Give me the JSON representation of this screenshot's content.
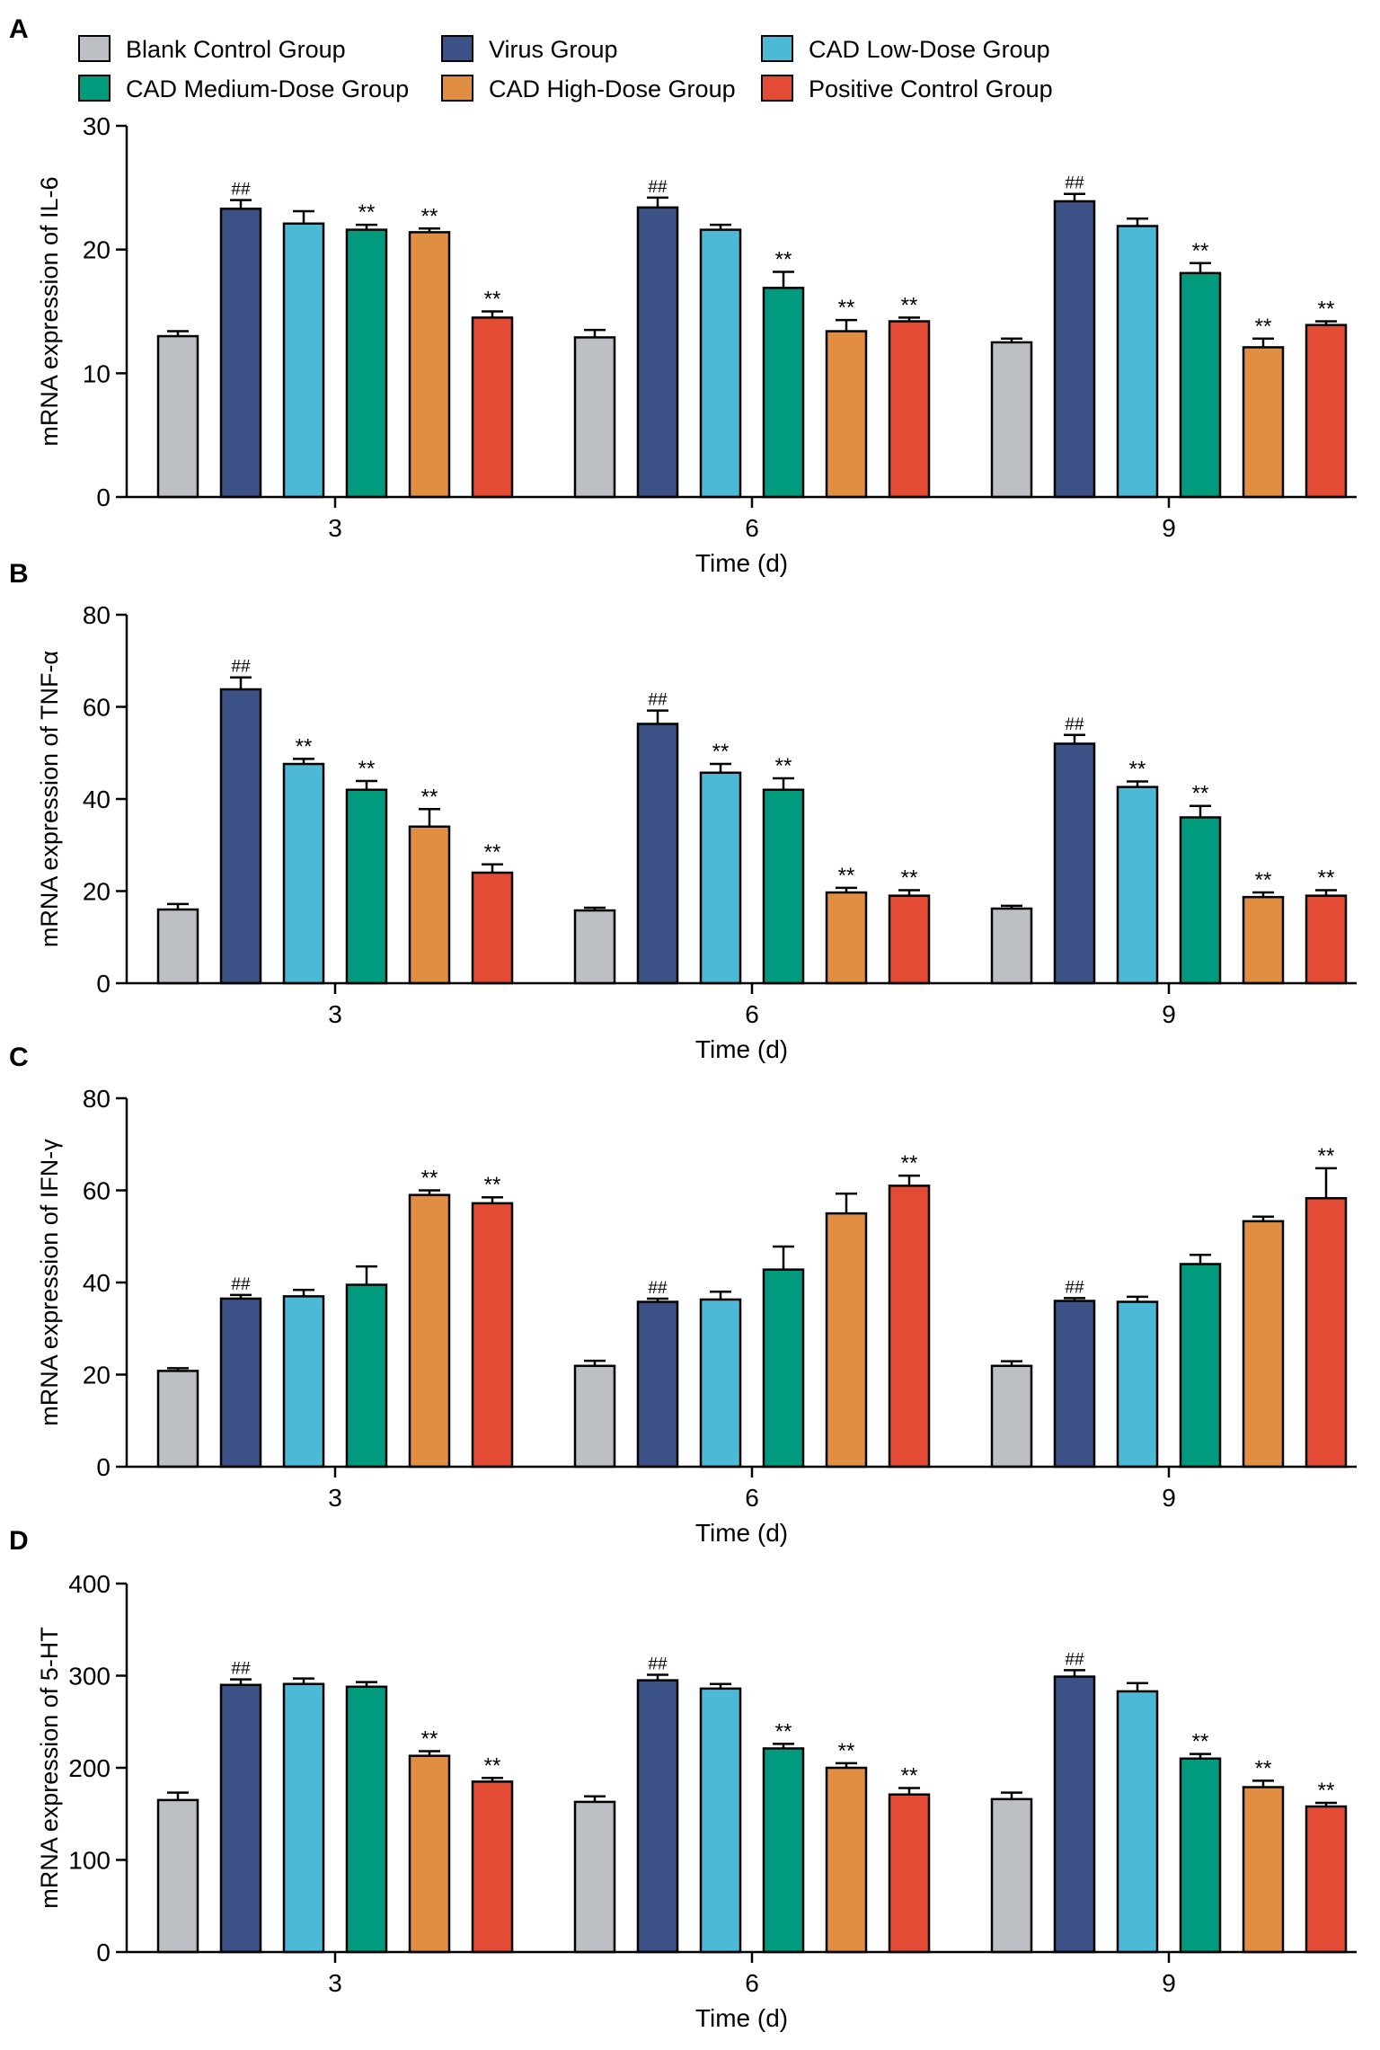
{
  "legend": {
    "items": [
      {
        "name": "Blank Control Group",
        "color": "#bcbfc3"
      },
      {
        "name": "Virus Group",
        "color": "#3c5185"
      },
      {
        "name": "CAD Low-Dose Group",
        "color": "#4cb9d6"
      },
      {
        "name": "CAD Medium-Dose Group",
        "color": "#009b7d"
      },
      {
        "name": "CAD High-Dose Group",
        "color": "#e08f42"
      },
      {
        "name": "Positive Control Group",
        "color": "#e44b34"
      }
    ]
  },
  "chart_data": [
    {
      "panel": "A",
      "type": "bar",
      "xlabel": "Time (d)",
      "ylabel": "mRNA expression of IL-6",
      "ylim": [
        0,
        30
      ],
      "yticks": [
        0,
        10,
        20,
        30
      ],
      "categories": [
        "3",
        "6",
        "9"
      ],
      "series": [
        {
          "name": "Blank Control Group",
          "values": [
            13.0,
            12.9,
            12.5
          ],
          "errors": [
            0.4,
            0.6,
            0.3
          ],
          "marks": [
            "",
            "",
            ""
          ]
        },
        {
          "name": "Virus Group",
          "values": [
            23.3,
            23.4,
            23.9
          ],
          "errors": [
            0.7,
            0.8,
            0.6
          ],
          "marks": [
            "##",
            "##",
            "##"
          ]
        },
        {
          "name": "CAD Low-Dose Group",
          "values": [
            22.1,
            21.6,
            21.9
          ],
          "errors": [
            1.0,
            0.4,
            0.6
          ],
          "marks": [
            "",
            "",
            ""
          ]
        },
        {
          "name": "CAD Medium-Dose Group",
          "values": [
            21.6,
            16.9,
            18.1
          ],
          "errors": [
            0.4,
            1.3,
            0.8
          ],
          "marks": [
            "**",
            "**",
            "**"
          ]
        },
        {
          "name": "CAD High-Dose Group",
          "values": [
            21.4,
            13.4,
            12.1
          ],
          "errors": [
            0.3,
            0.9,
            0.7
          ],
          "marks": [
            "**",
            "**",
            "**"
          ]
        },
        {
          "name": "Positive Control Group",
          "values": [
            14.5,
            14.2,
            13.9
          ],
          "errors": [
            0.5,
            0.3,
            0.3
          ],
          "marks": [
            "**",
            "**",
            "**"
          ]
        }
      ]
    },
    {
      "panel": "B",
      "type": "bar",
      "xlabel": "Time (d)",
      "ylabel": "mRNA expression of TNF-α",
      "ylim": [
        0,
        80
      ],
      "yticks": [
        0,
        20,
        40,
        60,
        80
      ],
      "categories": [
        "3",
        "6",
        "9"
      ],
      "series": [
        {
          "name": "Blank Control Group",
          "values": [
            16.0,
            15.8,
            16.2
          ],
          "errors": [
            1.2,
            0.6,
            0.6
          ],
          "marks": [
            "",
            "",
            ""
          ]
        },
        {
          "name": "Virus Group",
          "values": [
            63.8,
            56.3,
            52.0
          ],
          "errors": [
            2.6,
            2.9,
            1.9
          ],
          "marks": [
            "##",
            "##",
            "##"
          ]
        },
        {
          "name": "CAD Low-Dose Group",
          "values": [
            47.6,
            45.7,
            42.6
          ],
          "errors": [
            1.1,
            1.9,
            1.2
          ],
          "marks": [
            "**",
            "**",
            "**"
          ]
        },
        {
          "name": "CAD Medium-Dose Group",
          "values": [
            42.0,
            42.0,
            36.0
          ],
          "errors": [
            1.9,
            2.5,
            2.5
          ],
          "marks": [
            "**",
            "**",
            "**"
          ]
        },
        {
          "name": "CAD High-Dose Group",
          "values": [
            34.0,
            19.7,
            18.7
          ],
          "errors": [
            3.8,
            1.0,
            1.0
          ],
          "marks": [
            "**",
            "**",
            "**"
          ]
        },
        {
          "name": "Positive Control Group",
          "values": [
            24.0,
            19.0,
            19.0
          ],
          "errors": [
            1.8,
            1.2,
            1.2
          ],
          "marks": [
            "**",
            "**",
            "**"
          ]
        }
      ]
    },
    {
      "panel": "C",
      "type": "bar",
      "xlabel": "Time (d)",
      "ylabel": "mRNA expression of IFN-γ",
      "ylim": [
        0,
        80
      ],
      "yticks": [
        0,
        20,
        40,
        60,
        80
      ],
      "categories": [
        "3",
        "6",
        "9"
      ],
      "series": [
        {
          "name": "Blank Control Group",
          "values": [
            20.8,
            21.9,
            21.9
          ],
          "errors": [
            0.6,
            1.1,
            1.0
          ],
          "marks": [
            "",
            "",
            ""
          ]
        },
        {
          "name": "Virus Group",
          "values": [
            36.5,
            35.8,
            36.0
          ],
          "errors": [
            0.8,
            0.7,
            0.6
          ],
          "marks": [
            "##",
            "##",
            "##"
          ]
        },
        {
          "name": "CAD Low-Dose Group",
          "values": [
            37.0,
            36.3,
            35.8
          ],
          "errors": [
            1.4,
            1.7,
            1.1
          ],
          "marks": [
            "",
            "",
            ""
          ]
        },
        {
          "name": "CAD Medium-Dose Group",
          "values": [
            39.5,
            42.8,
            44.0
          ],
          "errors": [
            4.0,
            5.0,
            2.0
          ],
          "marks": [
            "",
            "",
            ""
          ]
        },
        {
          "name": "CAD High-Dose Group",
          "values": [
            59.0,
            55.0,
            53.3
          ],
          "errors": [
            1.0,
            4.3,
            1.0
          ],
          "marks": [
            "**",
            "",
            ""
          ]
        },
        {
          "name": "Positive Control Group",
          "values": [
            57.2,
            61.0,
            58.3
          ],
          "errors": [
            1.3,
            2.2,
            6.5
          ],
          "marks": [
            "**",
            "**",
            "**"
          ]
        }
      ]
    },
    {
      "panel": "D",
      "type": "bar",
      "xlabel": "Time (d)",
      "ylabel": "mRNA expression of 5-HT",
      "ylim": [
        0,
        400
      ],
      "yticks": [
        0,
        100,
        200,
        300,
        400
      ],
      "categories": [
        "3",
        "6",
        "9"
      ],
      "series": [
        {
          "name": "Blank Control Group",
          "values": [
            165,
            163,
            166
          ],
          "errors": [
            8,
            6,
            7
          ],
          "marks": [
            "",
            "",
            ""
          ]
        },
        {
          "name": "Virus Group",
          "values": [
            290,
            295,
            299
          ],
          "errors": [
            6,
            6,
            7
          ],
          "marks": [
            "##",
            "##",
            "##"
          ]
        },
        {
          "name": "CAD Low-Dose Group",
          "values": [
            291,
            286,
            283
          ],
          "errors": [
            6,
            5,
            9
          ],
          "marks": [
            "",
            "",
            ""
          ]
        },
        {
          "name": "CAD Medium-Dose Group",
          "values": [
            288,
            221,
            210
          ],
          "errors": [
            5,
            5,
            5
          ],
          "marks": [
            "",
            "**",
            "**"
          ]
        },
        {
          "name": "CAD High-Dose Group",
          "values": [
            213,
            200,
            179
          ],
          "errors": [
            5,
            5,
            7
          ],
          "marks": [
            "**",
            "**",
            "**"
          ]
        },
        {
          "name": "Positive Control Group",
          "values": [
            185,
            171,
            158
          ],
          "errors": [
            4,
            7,
            4
          ],
          "marks": [
            "**",
            "**",
            "**"
          ]
        }
      ]
    }
  ]
}
